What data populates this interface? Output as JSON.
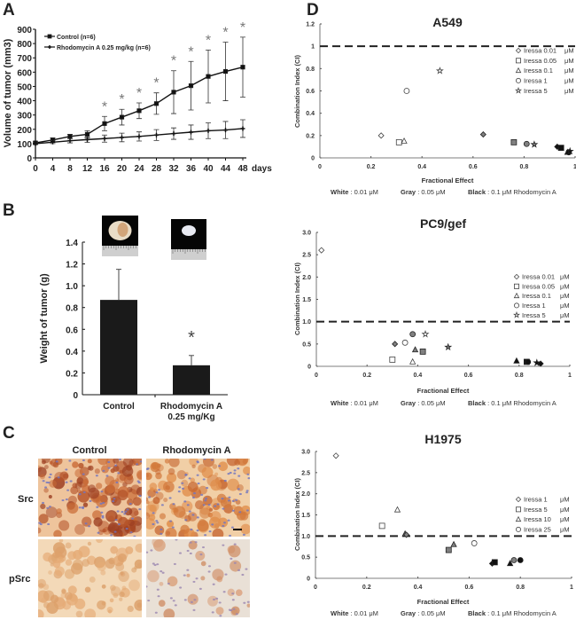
{
  "panel_labels": {
    "a": "A",
    "b": "B",
    "c": "C",
    "d": "D"
  },
  "chart_data": [
    {
      "panel": "A",
      "type": "line",
      "xlabel": "days",
      "ylabel": "Volume of tumor (mm3)",
      "x": [
        0,
        4,
        8,
        12,
        16,
        20,
        24,
        28,
        32,
        36,
        40,
        44,
        48
      ],
      "xlim": [
        0,
        48
      ],
      "ylim": [
        0,
        900
      ],
      "xticks": [
        0,
        4,
        8,
        12,
        16,
        20,
        24,
        28,
        32,
        36,
        40,
        44,
        48
      ],
      "yticks": [
        0,
        100,
        200,
        300,
        400,
        500,
        600,
        700,
        800,
        900
      ],
      "grid": false,
      "legend": "top-left",
      "series": [
        {
          "name": "Control (n=6)",
          "marker": "square",
          "values": [
            105,
            125,
            150,
            165,
            240,
            285,
            330,
            380,
            460,
            505,
            570,
            605,
            635
          ],
          "errors": [
            8,
            15,
            15,
            25,
            50,
            55,
            55,
            75,
            150,
            170,
            185,
            205,
            210
          ]
        },
        {
          "name": "Rhodomycin A  0.25 mg/kg (n=6)",
          "marker": "plus",
          "values": [
            100,
            110,
            120,
            128,
            135,
            143,
            150,
            160,
            170,
            180,
            190,
            195,
            205
          ],
          "errors": [
            5,
            10,
            15,
            20,
            25,
            30,
            32,
            38,
            40,
            50,
            55,
            60,
            62
          ]
        }
      ],
      "significance": {
        "symbol": "*",
        "x": [
          16,
          20,
          24,
          28,
          32,
          36,
          40,
          44,
          48
        ]
      }
    },
    {
      "panel": "B",
      "type": "bar",
      "ylabel": "Weight of tumor (g)",
      "categories": [
        [
          "Control"
        ],
        [
          "Rhodomycin A",
          "0.25 mg/Kg"
        ]
      ],
      "values": [
        0.87,
        0.27
      ],
      "errors": [
        0.28,
        0.09
      ],
      "ylim": [
        0,
        1.4
      ],
      "yticks": [
        0,
        0.2,
        0.4,
        0.6,
        0.8,
        1.0,
        1.2,
        1.4
      ],
      "ytick_labels": [
        "0",
        "0.2",
        "0.4",
        "0.6",
        "0.8",
        "1.0",
        "1.2",
        "1.4"
      ],
      "significance": {
        "symbol": "*",
        "category": 1
      },
      "bar_color": "#1a1a1a"
    },
    {
      "panel": "D",
      "type": "scatter",
      "title": "A549",
      "xlabel": "Fractional Effect",
      "ylabel": "Combination Index (CI)",
      "xlim": [
        0,
        1
      ],
      "ylim": [
        0,
        1.2
      ],
      "xticks": [
        0,
        0.2,
        0.4,
        0.6,
        0.8,
        1
      ],
      "xtick_labels": [
        "0",
        "0.2",
        "0.4",
        "0.6",
        "0.8",
        "1"
      ],
      "yticks": [
        0,
        0.2,
        0.4,
        0.6,
        0.8,
        1,
        1.2
      ],
      "ytick_labels": [
        "0",
        "0.2",
        "0.4",
        "0.6",
        "0.8",
        "1",
        "1.2"
      ],
      "reference_line": 1,
      "legend": "top-right",
      "legend_entries": [
        {
          "shape": "diamond",
          "name": "Iressa 0.01",
          "unit": "μM"
        },
        {
          "shape": "square",
          "name": "Iressa 0.05",
          "unit": "μM"
        },
        {
          "shape": "triangle",
          "name": "Iressa 0.1",
          "unit": "μM"
        },
        {
          "shape": "circle",
          "name": "Iressa 1",
          "unit": "μM"
        },
        {
          "shape": "star",
          "name": "Iressa 5",
          "unit": "μM"
        }
      ],
      "points": [
        {
          "x": 0.24,
          "y": 0.2,
          "shape": "diamond",
          "fill": "white"
        },
        {
          "x": 0.31,
          "y": 0.14,
          "shape": "square",
          "fill": "white"
        },
        {
          "x": 0.33,
          "y": 0.15,
          "shape": "triangle",
          "fill": "white"
        },
        {
          "x": 0.34,
          "y": 0.6,
          "shape": "circle",
          "fill": "white"
        },
        {
          "x": 0.47,
          "y": 0.78,
          "shape": "star",
          "fill": "white"
        },
        {
          "x": 0.64,
          "y": 0.21,
          "shape": "diamond",
          "fill": "gray"
        },
        {
          "x": 0.76,
          "y": 0.14,
          "shape": "square",
          "fill": "gray"
        },
        {
          "x": 0.81,
          "y": 0.125,
          "shape": "circle",
          "fill": "gray"
        },
        {
          "x": 0.84,
          "y": 0.12,
          "shape": "star",
          "fill": "gray"
        },
        {
          "x": 0.93,
          "y": 0.1,
          "shape": "diamond",
          "fill": "black"
        },
        {
          "x": 0.945,
          "y": 0.09,
          "shape": "square",
          "fill": "black"
        },
        {
          "x": 0.97,
          "y": 0.05,
          "shape": "triangle",
          "fill": "black"
        },
        {
          "x": 0.975,
          "y": 0.05,
          "shape": "circle",
          "fill": "black"
        },
        {
          "x": 0.98,
          "y": 0.06,
          "shape": "star",
          "fill": "black"
        }
      ],
      "footer": [
        {
          "key": "White",
          "value": ": 0.01 μM"
        },
        {
          "key": "Gray",
          "value": ": 0.05 μM"
        },
        {
          "key": "Black",
          "value": ": 0.1 μM Rhodomycin A"
        }
      ]
    },
    {
      "panel": "D",
      "type": "scatter",
      "title": "PC9/gef",
      "xlabel": "Fractional Effect",
      "ylabel": "Combination Index (CI)",
      "xlim": [
        0,
        1
      ],
      "ylim": [
        0,
        3.0
      ],
      "xticks": [
        0,
        0.2,
        0.4,
        0.6,
        0.8,
        1
      ],
      "xtick_labels": [
        "0",
        "0.2",
        "0.4",
        "0.6",
        "0.8",
        "1"
      ],
      "yticks": [
        0,
        0.5,
        1.0,
        1.5,
        2.0,
        2.5,
        3.0
      ],
      "ytick_labels": [
        "0",
        "0.5",
        "1.0",
        "1.5",
        "2.0",
        "2.5",
        "3.0"
      ],
      "reference_line": 1,
      "legend": "right",
      "legend_entries": [
        {
          "shape": "diamond",
          "name": "Iressa 0.01",
          "unit": "μM"
        },
        {
          "shape": "square",
          "name": "Iressa 0.05",
          "unit": "μM"
        },
        {
          "shape": "triangle",
          "name": "Iressa 0.1",
          "unit": "μM"
        },
        {
          "shape": "circle",
          "name": "Iressa 1",
          "unit": "μM"
        },
        {
          "shape": "star",
          "name": "Iressa 5",
          "unit": "μM"
        }
      ],
      "points": [
        {
          "x": 0.02,
          "y": 2.6,
          "shape": "diamond",
          "fill": "white"
        },
        {
          "x": 0.3,
          "y": 0.15,
          "shape": "square",
          "fill": "white"
        },
        {
          "x": 0.38,
          "y": 0.1,
          "shape": "triangle",
          "fill": "white"
        },
        {
          "x": 0.35,
          "y": 0.53,
          "shape": "circle",
          "fill": "white"
        },
        {
          "x": 0.43,
          "y": 0.72,
          "shape": "star",
          "fill": "white"
        },
        {
          "x": 0.31,
          "y": 0.5,
          "shape": "diamond",
          "fill": "gray"
        },
        {
          "x": 0.38,
          "y": 0.72,
          "shape": "circle",
          "fill": "gray"
        },
        {
          "x": 0.39,
          "y": 0.37,
          "shape": "triangle",
          "fill": "gray"
        },
        {
          "x": 0.42,
          "y": 0.33,
          "shape": "square",
          "fill": "gray"
        },
        {
          "x": 0.52,
          "y": 0.43,
          "shape": "star",
          "fill": "gray"
        },
        {
          "x": 0.79,
          "y": 0.12,
          "shape": "triangle",
          "fill": "black"
        },
        {
          "x": 0.83,
          "y": 0.1,
          "shape": "square",
          "fill": "black"
        },
        {
          "x": 0.835,
          "y": 0.1,
          "shape": "circle",
          "fill": "black"
        },
        {
          "x": 0.87,
          "y": 0.08,
          "shape": "star",
          "fill": "black"
        },
        {
          "x": 0.885,
          "y": 0.06,
          "shape": "diamond",
          "fill": "black"
        }
      ],
      "footer": [
        {
          "key": "White",
          "value": ": 0.01 μM"
        },
        {
          "key": "Gray",
          "value": ": 0.05 μM"
        },
        {
          "key": "Black",
          "value": ": 0.1 μM Rhodomycin A"
        }
      ]
    },
    {
      "panel": "D",
      "type": "scatter",
      "title": "H1975",
      "xlabel": "Fractional Effect",
      "ylabel": "Combination Index (CI)",
      "xlim": [
        0,
        1
      ],
      "ylim": [
        0,
        3.0
      ],
      "xticks": [
        0,
        0.2,
        0.4,
        0.6,
        0.8,
        1
      ],
      "xtick_labels": [
        "0",
        "0.2",
        "0.4",
        "0.6",
        "0.8",
        "1"
      ],
      "yticks": [
        0,
        0.5,
        1.0,
        1.5,
        2.0,
        2.5,
        3.0
      ],
      "ytick_labels": [
        "0",
        "0.5",
        "1.0",
        "1.5",
        "2.0",
        "2.5",
        "3.0"
      ],
      "reference_line": 1,
      "legend": "right",
      "legend_entries": [
        {
          "shape": "diamond",
          "name": "Iressa 1",
          "unit": "μM"
        },
        {
          "shape": "square",
          "name": "Iressa 5",
          "unit": "μM"
        },
        {
          "shape": "triangle",
          "name": "Iressa 10",
          "unit": "μM"
        },
        {
          "shape": "circle",
          "name": "Iressa 25",
          "unit": "μM"
        }
      ],
      "points": [
        {
          "x": 0.08,
          "y": 2.9,
          "shape": "diamond",
          "fill": "white"
        },
        {
          "x": 0.26,
          "y": 1.24,
          "shape": "square",
          "fill": "white"
        },
        {
          "x": 0.32,
          "y": 1.62,
          "shape": "triangle",
          "fill": "white"
        },
        {
          "x": 0.62,
          "y": 0.83,
          "shape": "circle",
          "fill": "white"
        },
        {
          "x": 0.35,
          "y": 1.05,
          "shape": "triangle",
          "fill": "gray"
        },
        {
          "x": 0.355,
          "y": 1.03,
          "shape": "diamond",
          "fill": "gray"
        },
        {
          "x": 0.52,
          "y": 0.67,
          "shape": "square",
          "fill": "gray"
        },
        {
          "x": 0.54,
          "y": 0.8,
          "shape": "triangle",
          "fill": "gray"
        },
        {
          "x": 0.775,
          "y": 0.43,
          "shape": "circle",
          "fill": "gray"
        },
        {
          "x": 0.69,
          "y": 0.35,
          "shape": "diamond",
          "fill": "black"
        },
        {
          "x": 0.7,
          "y": 0.38,
          "shape": "square",
          "fill": "black"
        },
        {
          "x": 0.76,
          "y": 0.35,
          "shape": "triangle",
          "fill": "black"
        },
        {
          "x": 0.8,
          "y": 0.43,
          "shape": "circle",
          "fill": "black"
        }
      ],
      "footer": [
        {
          "key": "White",
          "value": ": 0.01 μM"
        },
        {
          "key": "Gray",
          "value": ": 0.05 μM"
        },
        {
          "key": "Black",
          "value": ": 0.1 μM Rhodomycin A"
        }
      ]
    }
  ],
  "panel_c": {
    "columns": [
      "Control",
      "Rhodomycin A"
    ],
    "rows": [
      "Src",
      "pSrc"
    ]
  },
  "colors": {
    "white": "#ffffff",
    "gray": "#808080",
    "black": "#111111",
    "line": "#222222",
    "dash": "#222222"
  }
}
